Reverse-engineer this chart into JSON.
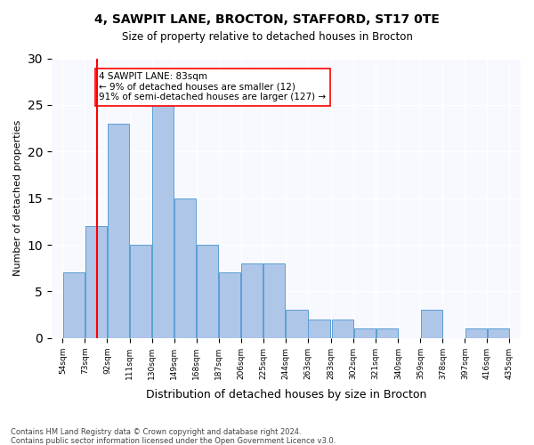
{
  "title1": "4, SAWPIT LANE, BROCTON, STAFFORD, ST17 0TE",
  "title2": "Size of property relative to detached houses in Brocton",
  "xlabel": "Distribution of detached houses by size in Brocton",
  "ylabel": "Number of detached properties",
  "bin_labels": [
    "54sqm",
    "73sqm",
    "92sqm",
    "111sqm",
    "130sqm",
    "149sqm",
    "168sqm",
    "187sqm",
    "206sqm",
    "225sqm",
    "244sqm",
    "263sqm",
    "283sqm",
    "302sqm",
    "321sqm",
    "340sqm",
    "359sqm",
    "378sqm",
    "397sqm",
    "416sqm",
    "435sqm"
  ],
  "bar_values": [
    7,
    12,
    23,
    10,
    25,
    15,
    10,
    7,
    8,
    8,
    3,
    2,
    2,
    1,
    1,
    0,
    3,
    0,
    1,
    1
  ],
  "bar_color": "#aec6e8",
  "bar_edge_color": "#5a9fd4",
  "red_line_x": 83,
  "bin_edges": [
    54,
    73,
    92,
    111,
    130,
    149,
    168,
    187,
    206,
    225,
    244,
    263,
    283,
    302,
    321,
    340,
    359,
    378,
    397,
    416,
    435
  ],
  "annotation_text": "4 SAWPIT LANE: 83sqm\n← 9% of detached houses are smaller (12)\n91% of semi-detached houses are larger (127) →",
  "ylim": [
    0,
    30
  ],
  "yticks": [
    0,
    5,
    10,
    15,
    20,
    25,
    30
  ],
  "footer1": "Contains HM Land Registry data © Crown copyright and database right 2024.",
  "footer2": "Contains public sector information licensed under the Open Government Licence v3.0.",
  "background_color": "#f8f9ff"
}
